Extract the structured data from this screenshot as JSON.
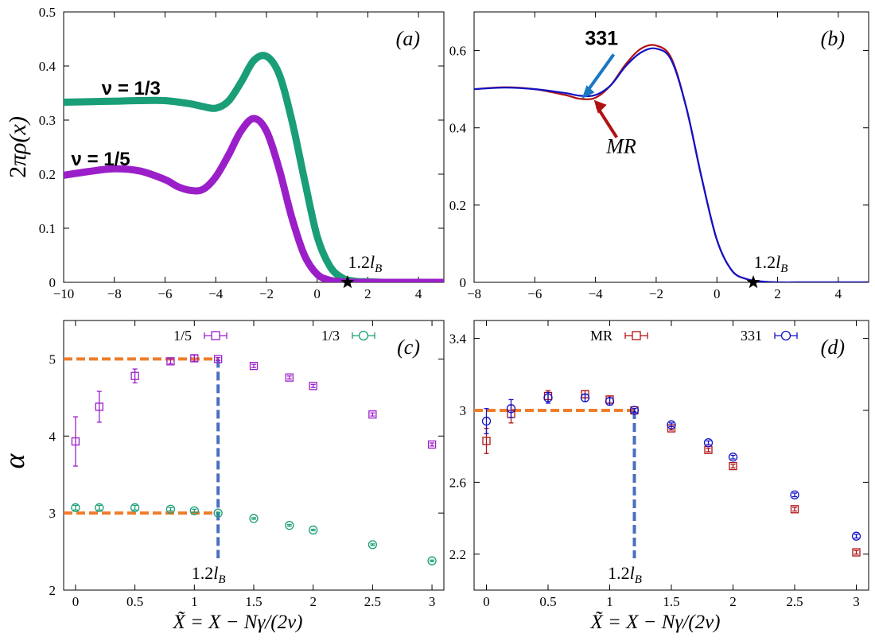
{
  "chart_data": [
    {
      "panel": "(a)",
      "type": "line",
      "xlim": [
        -10,
        5
      ],
      "ylim": [
        0,
        0.5
      ],
      "xticks": [
        -10,
        -8,
        -6,
        -4,
        -2,
        0,
        2,
        4
      ],
      "yticks": [
        0,
        0.1,
        0.2,
        0.3,
        0.4,
        0.5
      ],
      "ylabel": "2πρ(x)",
      "annotation": "1.2l_B",
      "annotation_x": 1.2,
      "series": [
        {
          "name": "ν = 1/3",
          "color": "#1a9e77",
          "x": [
            -10,
            -9,
            -8,
            -7,
            -6,
            -5,
            -4.5,
            -4,
            -3.5,
            -3,
            -2.5,
            -2,
            -1.5,
            -1,
            -0.5,
            0,
            0.5,
            1,
            1.5,
            2,
            3,
            4,
            5
          ],
          "y": [
            0.333,
            0.334,
            0.335,
            0.336,
            0.336,
            0.33,
            0.325,
            0.322,
            0.335,
            0.37,
            0.41,
            0.418,
            0.385,
            0.3,
            0.19,
            0.085,
            0.03,
            0.008,
            0.002,
            0.001,
            0,
            0,
            0
          ]
        },
        {
          "name": "ν = 1/5",
          "color": "#9b1fc9",
          "x": [
            -10,
            -9,
            -8,
            -7,
            -6,
            -5.5,
            -5,
            -4.5,
            -4,
            -3.5,
            -3,
            -2.5,
            -2,
            -1.5,
            -1,
            -0.5,
            0,
            0.5,
            1,
            1.5,
            2,
            3,
            4,
            5
          ],
          "y": [
            0.198,
            0.205,
            0.21,
            0.206,
            0.19,
            0.177,
            0.17,
            0.172,
            0.195,
            0.235,
            0.28,
            0.303,
            0.28,
            0.21,
            0.12,
            0.05,
            0.015,
            0.004,
            0.001,
            0,
            0,
            0,
            0,
            0
          ]
        }
      ]
    },
    {
      "panel": "(b)",
      "type": "line",
      "xlim": [
        -8,
        5
      ],
      "ylim": [
        0,
        0.7
      ],
      "xticks": [
        -8,
        -6,
        -4,
        -2,
        0,
        2,
        4
      ],
      "yticks": [
        0,
        0.2,
        0.4,
        0.6
      ],
      "annotation": "1.2l_B",
      "annotation_x": 1.2,
      "series": [
        {
          "name": "MR",
          "color": "#b01212",
          "x": [
            -8,
            -7,
            -6,
            -5,
            -4.5,
            -4,
            -3.5,
            -3,
            -2.5,
            -2,
            -1.5,
            -1,
            -0.5,
            0,
            0.5,
            1,
            1.5,
            2,
            3,
            4,
            5
          ],
          "y": [
            0.5,
            0.505,
            0.5,
            0.485,
            0.475,
            0.478,
            0.51,
            0.565,
            0.605,
            0.613,
            0.58,
            0.45,
            0.27,
            0.11,
            0.03,
            0.008,
            0.002,
            0,
            0,
            0,
            0
          ]
        },
        {
          "name": "331",
          "color": "#1212c9",
          "x": [
            -8,
            -7,
            -6,
            -5,
            -4.5,
            -4,
            -3.5,
            -3,
            -2.5,
            -2,
            -1.5,
            -1,
            -0.5,
            0,
            0.5,
            1,
            1.5,
            2,
            3,
            4,
            5
          ],
          "y": [
            0.5,
            0.504,
            0.5,
            0.49,
            0.483,
            0.485,
            0.51,
            0.56,
            0.595,
            0.605,
            0.575,
            0.45,
            0.27,
            0.11,
            0.03,
            0.008,
            0.002,
            0,
            0,
            0,
            0
          ]
        }
      ],
      "labels": [
        "331",
        "MR"
      ]
    },
    {
      "panel": "(c)",
      "type": "scatter",
      "xlim": [
        -0.1,
        3.1
      ],
      "ylim": [
        2,
        5.5
      ],
      "xticks": [
        0,
        0.5,
        1,
        1.5,
        2,
        2.5,
        3
      ],
      "yticks": [
        2,
        3,
        4,
        5
      ],
      "xlabel": "X̃ = X − Nγ/(2ν)",
      "ylabel": "α",
      "annotation": "1.2l_B",
      "annotation_x": 1.2,
      "ref_lines": [
        {
          "y": 5,
          "x_end": 1.2
        },
        {
          "y": 3,
          "x_end": 1.2
        }
      ],
      "series": [
        {
          "name": "1/5",
          "marker": "square",
          "color": "#9b1fc9",
          "x": [
            0,
            0.2,
            0.5,
            0.8,
            1.0,
            1.2,
            1.5,
            1.8,
            2.0,
            2.5,
            3.0
          ],
          "y": [
            3.93,
            4.38,
            4.78,
            4.97,
            5.01,
            5.0,
            4.91,
            4.76,
            4.65,
            4.28,
            3.89
          ],
          "err": [
            0.32,
            0.2,
            0.09,
            0.03,
            0.04,
            0.02,
            0.02,
            0.02,
            0.02,
            0.02,
            0.02
          ]
        },
        {
          "name": "1/3",
          "marker": "circle",
          "color": "#1a9e77",
          "x": [
            0,
            0.2,
            0.5,
            0.8,
            1.0,
            1.2,
            1.5,
            1.8,
            2.0,
            2.5,
            3.0
          ],
          "y": [
            3.07,
            3.07,
            3.07,
            3.05,
            3.03,
            3.0,
            2.93,
            2.84,
            2.78,
            2.59,
            2.38
          ],
          "err": [
            0.03,
            0.03,
            0.03,
            0.02,
            0.02,
            0.01,
            0.01,
            0.01,
            0.01,
            0.01,
            0.01
          ]
        }
      ]
    },
    {
      "panel": "(d)",
      "type": "scatter",
      "xlim": [
        -0.1,
        3.1
      ],
      "ylim": [
        2.0,
        3.5
      ],
      "xticks": [
        0,
        0.5,
        1,
        1.5,
        2,
        2.5,
        3
      ],
      "yticks": [
        2.2,
        2.6,
        3,
        3.4
      ],
      "xlabel": "X̃ = X − Nγ/(2ν)",
      "annotation": "1.2l_B",
      "annotation_x": 1.2,
      "ref_lines": [
        {
          "y": 3,
          "x_end": 1.2
        }
      ],
      "series": [
        {
          "name": "MR",
          "marker": "square",
          "color": "#b01212",
          "x": [
            0,
            0.2,
            0.5,
            0.8,
            1.0,
            1.2,
            1.5,
            1.8,
            2.0,
            2.5,
            3.0
          ],
          "y": [
            2.83,
            2.98,
            3.08,
            3.09,
            3.06,
            3.0,
            2.9,
            2.78,
            2.69,
            2.45,
            2.21
          ],
          "err": [
            0.07,
            0.05,
            0.03,
            0.02,
            0.02,
            0.01,
            0.01,
            0.01,
            0.01,
            0.01,
            0.01
          ]
        },
        {
          "name": "331",
          "marker": "circle",
          "color": "#1212c9",
          "x": [
            0,
            0.2,
            0.5,
            0.8,
            1.0,
            1.2,
            1.5,
            1.8,
            2.0,
            2.5,
            3.0
          ],
          "y": [
            2.94,
            3.01,
            3.07,
            3.07,
            3.05,
            3.0,
            2.92,
            2.82,
            2.74,
            2.53,
            2.3
          ],
          "err": [
            0.07,
            0.05,
            0.03,
            0.02,
            0.02,
            0.01,
            0.01,
            0.01,
            0.01,
            0.01,
            0.01
          ]
        }
      ]
    }
  ]
}
